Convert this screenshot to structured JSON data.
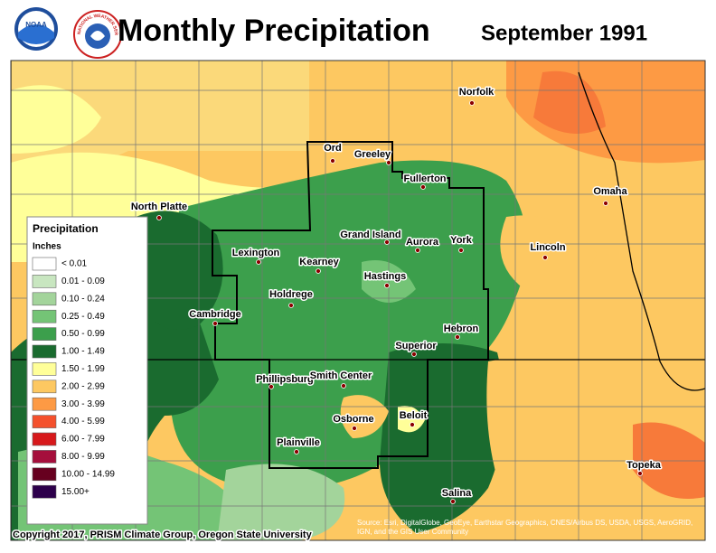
{
  "header": {
    "title": "Monthly Precipitation",
    "subtitle": "September 1991"
  },
  "logos": {
    "noaa": "NOAA",
    "nws": "NATIONAL WEATHER SERVICE"
  },
  "legend": {
    "title": "Precipitation",
    "units": "Inches",
    "items": [
      {
        "label": "< 0.01",
        "color": "#ffffff"
      },
      {
        "label": "0.01 - 0.09",
        "color": "#c8e6c0"
      },
      {
        "label": "0.10 - 0.24",
        "color": "#a3d49b"
      },
      {
        "label": "0.25 - 0.49",
        "color": "#74c476"
      },
      {
        "label": "0.50 - 0.99",
        "color": "#3c9f4c"
      },
      {
        "label": "1.00 - 1.49",
        "color": "#1a6b2f"
      },
      {
        "label": "1.50 - 1.99",
        "color": "#ffff99"
      },
      {
        "label": "2.00 - 2.99",
        "color": "#fdc861"
      },
      {
        "label": "3.00 - 3.99",
        "color": "#fd9a44"
      },
      {
        "label": "4.00 - 5.99",
        "color": "#f4502c"
      },
      {
        "label": "6.00 - 7.99",
        "color": "#d7191c"
      },
      {
        "label": "8.00 - 9.99",
        "color": "#a50f3c"
      },
      {
        "label": "10.00 - 14.99",
        "color": "#67001f"
      },
      {
        "label": "15.00+",
        "color": "#2d004b"
      }
    ]
  },
  "cities": [
    "Ord",
    "Greeley",
    "Norfolk",
    "Fullerton",
    "North Platte",
    "Omaha",
    "Grand Island",
    "Aurora",
    "York",
    "Lincoln",
    "Lexington",
    "Kearney",
    "Hastings",
    "Holdrege",
    "Cambridge",
    "Hebron",
    "Superior",
    "Phillipsburg",
    "Smith Center",
    "Beloit",
    "Osborne",
    "Plainville",
    "Topeka",
    "Salina"
  ],
  "footer": {
    "copyright": "Copyright 2017, PRISM Climate Group, Oregon State University",
    "source": "Source: Esri, DigitalGlobe, GeoEye, Earthstar Geographics, CNES/Airbus DS, USDA, USGS, AeroGRID, IGN, and the GIS User Community"
  }
}
